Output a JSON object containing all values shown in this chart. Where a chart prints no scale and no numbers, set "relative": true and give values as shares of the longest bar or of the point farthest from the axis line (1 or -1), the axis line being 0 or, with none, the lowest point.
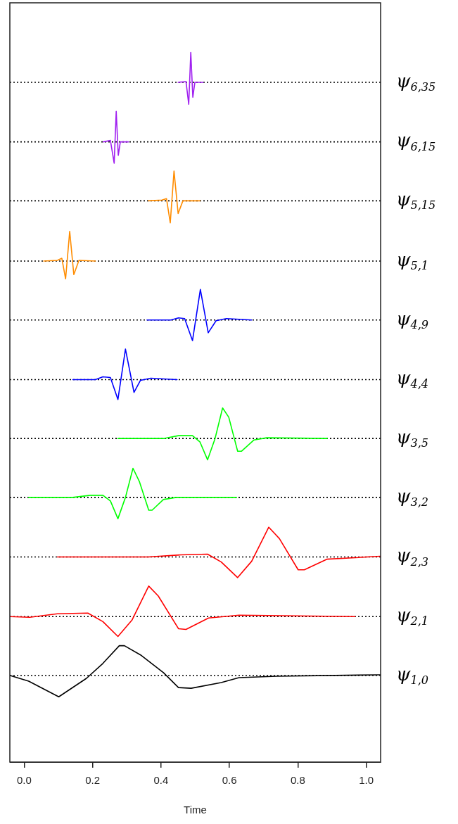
{
  "chart_data": {
    "type": "line",
    "xlabel": "Time",
    "relative": true,
    "xlim": [
      -0.042,
      1.042
    ],
    "xticks": [
      {
        "value": 0,
        "label": "0.0"
      },
      {
        "value": 0.2,
        "label": "0.2"
      },
      {
        "value": 0.4,
        "label": "0.4"
      },
      {
        "value": 0.6,
        "label": "0.6"
      },
      {
        "value": 0.8,
        "label": "0.8"
      },
      {
        "value": 1,
        "label": "1.0"
      }
    ],
    "grid": false,
    "legend": false,
    "ref_lines": [
      {
        "axis": "y",
        "value": 0.958,
        "label": "ψ$_{6,35}$",
        "color": "#000000",
        "line_style": "dotted"
      },
      {
        "axis": "y",
        "value": 0.874,
        "label": "ψ$_{6,15}$",
        "color": "#000000",
        "line_style": "dotted"
      },
      {
        "axis": "y",
        "value": 0.791,
        "label": "ψ$_{5,15}$",
        "color": "#000000",
        "line_style": "dotted"
      },
      {
        "axis": "y",
        "value": 0.706,
        "label": "ψ$_{5,1}$",
        "color": "#000000",
        "line_style": "dotted"
      },
      {
        "axis": "y",
        "value": 0.623,
        "label": "ψ$_{4,9}$",
        "color": "#000000",
        "line_style": "dotted"
      },
      {
        "axis": "y",
        "value": 0.539,
        "label": "ψ$_{4,4}$",
        "color": "#000000",
        "line_style": "dotted"
      },
      {
        "axis": "y",
        "value": 0.456,
        "label": "ψ$_{3,5}$",
        "color": "#000000",
        "line_style": "dotted"
      },
      {
        "axis": "y",
        "value": 0.373,
        "label": "ψ$_{3,2}$",
        "color": "#000000",
        "line_style": "dotted"
      },
      {
        "axis": "y",
        "value": 0.289,
        "label": "ψ$_{2,3}$",
        "color": "#000000",
        "line_style": "dotted"
      },
      {
        "axis": "y",
        "value": 0.205,
        "label": "ψ$_{2,1}$",
        "color": "#000000",
        "line_style": "dotted"
      },
      {
        "axis": "y",
        "value": 0.122,
        "label": "ψ$_{1,0}$",
        "color": "#000000",
        "line_style": "dotted"
      }
    ],
    "series": [
      {
        "color": "#000000",
        "x": [
          -0.041,
          0.013,
          0.101,
          0.182,
          0.23,
          0.278,
          0.293,
          0.34,
          0.407,
          0.451,
          0.488,
          0.576,
          0.628,
          0.738,
          1.041
        ],
        "values": [
          0.122,
          0.114,
          0.092,
          0.118,
          0.139,
          0.164,
          0.164,
          0.151,
          0.126,
          0.105,
          0.104,
          0.112,
          0.119,
          0.121,
          0.123
        ]
      },
      {
        "color": "#ff0000",
        "x": [
          -0.041,
          0.016,
          0.097,
          0.186,
          0.23,
          0.274,
          0.315,
          0.364,
          0.392,
          0.451,
          0.473,
          0.539,
          0.628,
          0.967
        ],
        "values": [
          0.205,
          0.204,
          0.209,
          0.21,
          0.198,
          0.177,
          0.2,
          0.248,
          0.234,
          0.188,
          0.187,
          0.203,
          0.207,
          0.205
        ]
      },
      {
        "color": "#ff0000",
        "x": [
          0.097,
          0.363,
          0.458,
          0.536,
          0.576,
          0.624,
          0.665,
          0.715,
          0.746,
          0.801,
          0.819,
          0.886,
          1.041
        ],
        "values": [
          0.289,
          0.289,
          0.292,
          0.293,
          0.282,
          0.26,
          0.283,
          0.331,
          0.315,
          0.271,
          0.271,
          0.286,
          0.29
        ]
      },
      {
        "color": "#00ff00",
        "x": [
          0.013,
          0.142,
          0.193,
          0.23,
          0.252,
          0.274,
          0.296,
          0.318,
          0.337,
          0.364,
          0.374,
          0.407,
          0.444,
          0.621
        ],
        "values": [
          0.373,
          0.373,
          0.376,
          0.376,
          0.368,
          0.343,
          0.373,
          0.414,
          0.395,
          0.355,
          0.355,
          0.37,
          0.373,
          0.373
        ]
      },
      {
        "color": "#00ff00",
        "x": [
          0.274,
          0.407,
          0.451,
          0.492,
          0.514,
          0.536,
          0.558,
          0.58,
          0.598,
          0.624,
          0.635,
          0.672,
          0.709,
          0.886
        ],
        "values": [
          0.456,
          0.456,
          0.46,
          0.46,
          0.451,
          0.426,
          0.456,
          0.499,
          0.486,
          0.438,
          0.438,
          0.454,
          0.457,
          0.456
        ]
      },
      {
        "color": "#0000ff",
        "x": [
          0.142,
          0.208,
          0.23,
          0.252,
          0.274,
          0.296,
          0.321,
          0.34,
          0.37,
          0.447
        ],
        "values": [
          0.539,
          0.539,
          0.543,
          0.542,
          0.511,
          0.582,
          0.521,
          0.538,
          0.541,
          0.539
        ]
      },
      {
        "color": "#0000ff",
        "x": [
          0.359,
          0.429,
          0.451,
          0.469,
          0.492,
          0.515,
          0.538,
          0.561,
          0.591,
          0.665
        ],
        "values": [
          0.623,
          0.623,
          0.626,
          0.625,
          0.594,
          0.666,
          0.605,
          0.622,
          0.625,
          0.623
        ]
      },
      {
        "color": "#ff8c00",
        "x": [
          0.057,
          0.097,
          0.11,
          0.121,
          0.133,
          0.145,
          0.16,
          0.208
        ],
        "values": [
          0.706,
          0.707,
          0.71,
          0.681,
          0.748,
          0.687,
          0.707,
          0.706
        ]
      },
      {
        "color": "#ff8c00",
        "x": [
          0.363,
          0.403,
          0.416,
          0.427,
          0.438,
          0.45,
          0.464,
          0.514
        ],
        "values": [
          0.791,
          0.792,
          0.794,
          0.76,
          0.833,
          0.773,
          0.791,
          0.791
        ]
      },
      {
        "color": "#a020f0",
        "x": [
          0.231,
          0.252,
          0.263,
          0.269,
          0.275,
          0.281,
          0.305
        ],
        "values": [
          0.874,
          0.876,
          0.844,
          0.917,
          0.855,
          0.874,
          0.874
        ]
      },
      {
        "color": "#a020f0",
        "x": [
          0.45,
          0.473,
          0.481,
          0.487,
          0.493,
          0.499,
          0.523
        ],
        "values": [
          0.958,
          0.959,
          0.927,
          1.0,
          0.937,
          0.958,
          0.958
        ]
      }
    ]
  }
}
